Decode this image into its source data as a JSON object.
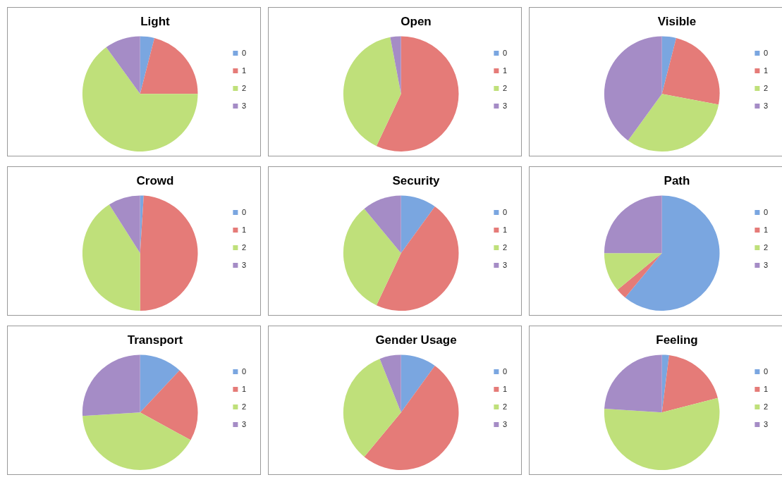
{
  "chart_data": [
    {
      "type": "pie",
      "title": "Light",
      "categories": [
        "0",
        "1",
        "2",
        "3"
      ],
      "values": [
        4,
        21,
        65,
        10
      ],
      "colors": [
        "#7aa6e0",
        "#e57b78",
        "#bfe07a",
        "#a58cc6"
      ],
      "legend": "right"
    },
    {
      "type": "pie",
      "title": "Open",
      "categories": [
        "0",
        "1",
        "2",
        "3"
      ],
      "values": [
        0,
        57,
        40,
        3
      ],
      "colors": [
        "#7aa6e0",
        "#e57b78",
        "#bfe07a",
        "#a58cc6"
      ],
      "legend": "right"
    },
    {
      "type": "pie",
      "title": "Visible",
      "categories": [
        "0",
        "1",
        "2",
        "3"
      ],
      "values": [
        4,
        24,
        32,
        40
      ],
      "colors": [
        "#7aa6e0",
        "#e57b78",
        "#bfe07a",
        "#a58cc6"
      ],
      "legend": "right"
    },
    {
      "type": "pie",
      "title": "Crowd",
      "categories": [
        "0",
        "1",
        "2",
        "3"
      ],
      "values": [
        1,
        49,
        41,
        9
      ],
      "colors": [
        "#7aa6e0",
        "#e57b78",
        "#bfe07a",
        "#a58cc6"
      ],
      "legend": "right"
    },
    {
      "type": "pie",
      "title": "Security",
      "categories": [
        "0",
        "1",
        "2",
        "3"
      ],
      "values": [
        10,
        47,
        32,
        11
      ],
      "colors": [
        "#7aa6e0",
        "#e57b78",
        "#bfe07a",
        "#a58cc6"
      ],
      "legend": "right"
    },
    {
      "type": "pie",
      "title": "Path",
      "categories": [
        "0",
        "1",
        "2",
        "3"
      ],
      "values": [
        61,
        3,
        11,
        25
      ],
      "colors": [
        "#7aa6e0",
        "#e57b78",
        "#bfe07a",
        "#a58cc6"
      ],
      "legend": "right"
    },
    {
      "type": "pie",
      "title": "Transport",
      "categories": [
        "0",
        "1",
        "2",
        "3"
      ],
      "values": [
        12,
        21,
        41,
        26
      ],
      "colors": [
        "#7aa6e0",
        "#e57b78",
        "#bfe07a",
        "#a58cc6"
      ],
      "legend": "right"
    },
    {
      "type": "pie",
      "title": "Gender Usage",
      "categories": [
        "0",
        "1",
        "2",
        "3"
      ],
      "values": [
        10,
        51,
        33,
        6
      ],
      "colors": [
        "#7aa6e0",
        "#e57b78",
        "#bfe07a",
        "#a58cc6"
      ],
      "legend": "right"
    },
    {
      "type": "pie",
      "title": "Feeling",
      "categories": [
        "0",
        "1",
        "2",
        "3"
      ],
      "values": [
        2,
        19,
        55,
        24
      ],
      "colors": [
        "#7aa6e0",
        "#e57b78",
        "#bfe07a",
        "#a58cc6"
      ],
      "legend": "right"
    }
  ]
}
